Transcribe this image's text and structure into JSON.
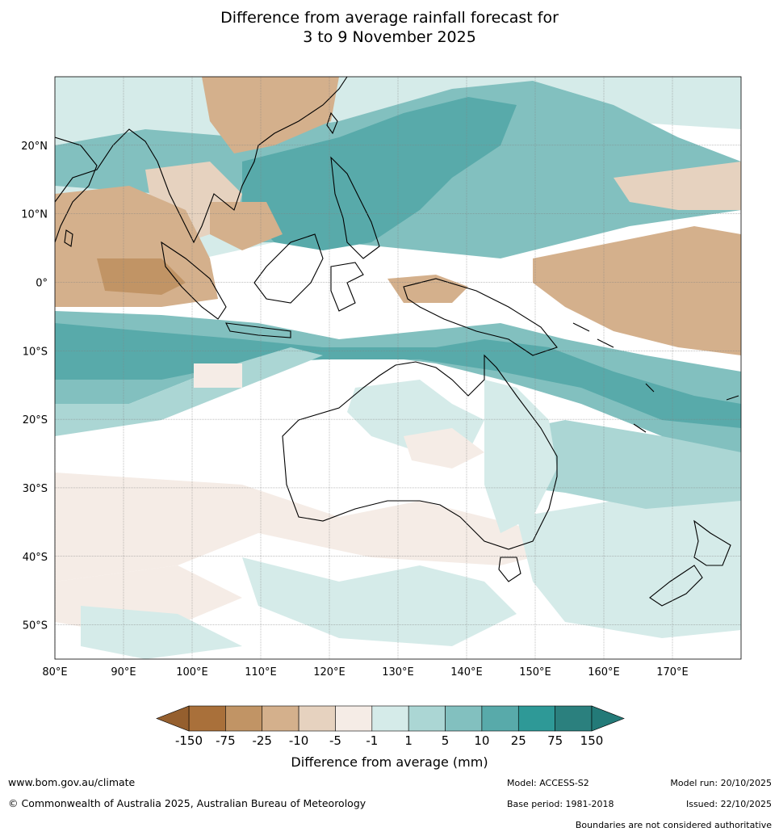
{
  "title": {
    "line1": "Difference from average rainfall forecast for",
    "line2": "3 to 9 November 2025"
  },
  "map": {
    "lon_range": [
      80,
      180
    ],
    "lat_range": [
      -55,
      30
    ],
    "lon_ticks": [
      "80°E",
      "90°E",
      "100°E",
      "110°E",
      "120°E",
      "130°E",
      "140°E",
      "150°E",
      "160°E",
      "170°E"
    ],
    "lat_ticks": [
      "20°N",
      "10°N",
      "0°",
      "10°S",
      "20°S",
      "30°S",
      "40°S",
      "50°S"
    ],
    "grid": true
  },
  "colorbar": {
    "label": "Difference from average (mm)",
    "ticks": [
      "-150",
      "-75",
      "-25",
      "-10",
      "-5",
      "-1",
      "1",
      "5",
      "10",
      "25",
      "75",
      "150"
    ],
    "colors": [
      "#a9703a",
      "#c19465",
      "#d4b08c",
      "#e6d2bf",
      "#f5ece6",
      "#ffffff",
      "#d5ebe9",
      "#abd6d4",
      "#82c0bf",
      "#58aaaa",
      "#2e9997",
      "#2b807e"
    ],
    "under_color": "#955f2e",
    "over_color": "#237a78"
  },
  "footer": {
    "url": "www.bom.gov.au/climate",
    "copyright": "© Commonwealth of Australia 2025, Australian Bureau of Meteorology",
    "model": "Model: ACCESS-S2",
    "base_period": "Base period: 1981-2018",
    "model_run": "Model run: 20/10/2025",
    "issued": "Issued: 22/10/2025",
    "disclaimer": "Boundaries are not considered authoritative"
  }
}
